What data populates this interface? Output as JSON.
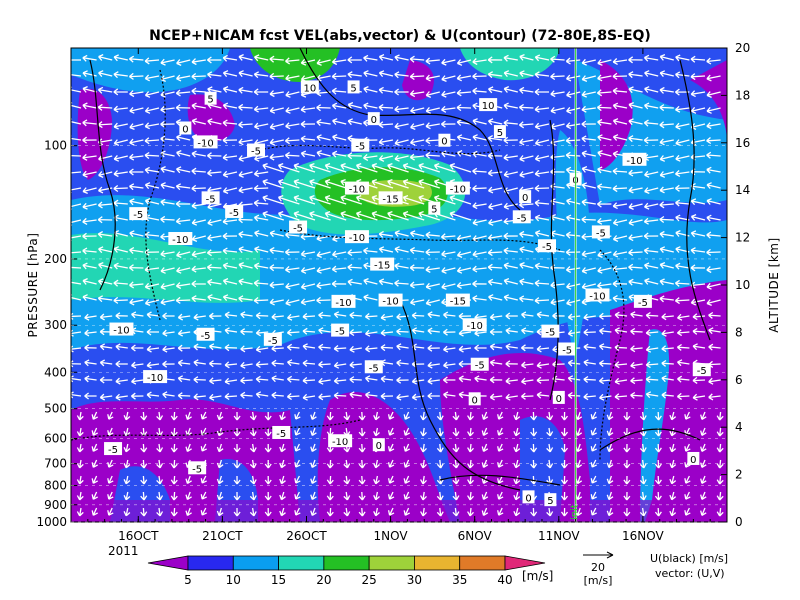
{
  "chart_data": {
    "type": "heatmap",
    "title": "NCEP+NICAM  fcst VEL(abs,vector) & U(contour)  (72-80E,8S-EQ)",
    "ylabel_left": "PRESSURE [hPa]",
    "ylabel_right": "ALTITUDE [km]",
    "x_ticks": [
      "16OCT",
      "21OCT",
      "26OCT",
      "1NOV",
      "6NOV",
      "11NOV",
      "16NOV"
    ],
    "year_label": "2011",
    "x_range": [
      "2011-10-12",
      "2011-11-20"
    ],
    "pressure_ticks": [
      100,
      200,
      300,
      400,
      500,
      600,
      700,
      800,
      900,
      1000
    ],
    "pressure_range": [
      1000,
      55
    ],
    "altitude_ticks": [
      0,
      2,
      4,
      6,
      8,
      10,
      12,
      14,
      16,
      18,
      20
    ],
    "init_label": "init",
    "init_date": "2011-11-11",
    "colorbar": {
      "levels": [
        5,
        10,
        15,
        20,
        25,
        30,
        35,
        40
      ],
      "colors": [
        "#9b00c8",
        "#2828f0",
        "#0a9ef0",
        "#22d6b4",
        "#24c024",
        "#9ed23a",
        "#e8b430",
        "#e07a28",
        "#e02878"
      ],
      "unit": "[m/s]"
    },
    "vector_ref_value": "20",
    "vector_ref_unit": "[m/s]",
    "legend_line1": "U(black) [m/s]",
    "legend_line2": "vector: (U,V)",
    "contour_labels": [
      {
        "day": 8.3,
        "p": 75,
        "text": "5"
      },
      {
        "day": 6.8,
        "p": 90,
        "text": "0"
      },
      {
        "day": 14.2,
        "p": 70,
        "text": "10"
      },
      {
        "day": 16.8,
        "p": 70,
        "text": "5"
      },
      {
        "day": 11.0,
        "p": 103,
        "text": "-5"
      },
      {
        "day": 8.0,
        "p": 98,
        "text": "-10"
      },
      {
        "day": 18.0,
        "p": 85,
        "text": "0"
      },
      {
        "day": 17.2,
        "p": 100,
        "text": "-5"
      },
      {
        "day": 22.2,
        "p": 97,
        "text": "0"
      },
      {
        "day": 24.8,
        "p": 78,
        "text": "10"
      },
      {
        "day": 25.5,
        "p": 92,
        "text": "5"
      },
      {
        "day": 27.0,
        "p": 137,
        "text": "0"
      },
      {
        "day": 30.0,
        "p": 123,
        "text": "0"
      },
      {
        "day": 33.5,
        "p": 109,
        "text": "-10"
      },
      {
        "day": 17.0,
        "p": 130,
        "text": "-10"
      },
      {
        "day": 19.0,
        "p": 138,
        "text": "-15"
      },
      {
        "day": 23.0,
        "p": 130,
        "text": "-10"
      },
      {
        "day": 21.6,
        "p": 147,
        "text": "5"
      },
      {
        "day": 8.3,
        "p": 138,
        "text": "-5"
      },
      {
        "day": 9.7,
        "p": 150,
        "text": "-5"
      },
      {
        "day": 4.0,
        "p": 152,
        "text": "-5"
      },
      {
        "day": 13.5,
        "p": 165,
        "text": "-5"
      },
      {
        "day": 17.0,
        "p": 175,
        "text": "-10"
      },
      {
        "day": 6.5,
        "p": 177,
        "text": "-10"
      },
      {
        "day": 28.3,
        "p": 185,
        "text": "-5"
      },
      {
        "day": 26.8,
        "p": 155,
        "text": "-5"
      },
      {
        "day": 31.5,
        "p": 170,
        "text": "-5"
      },
      {
        "day": 18.5,
        "p": 207,
        "text": "-15"
      },
      {
        "day": 16.2,
        "p": 260,
        "text": "-10"
      },
      {
        "day": 19.0,
        "p": 258,
        "text": "-10"
      },
      {
        "day": 23.0,
        "p": 258,
        "text": "-15"
      },
      {
        "day": 24.0,
        "p": 300,
        "text": "-10"
      },
      {
        "day": 31.3,
        "p": 250,
        "text": "-10"
      },
      {
        "day": 34.0,
        "p": 260,
        "text": "-5"
      },
      {
        "day": 3.0,
        "p": 308,
        "text": "-10"
      },
      {
        "day": 8.0,
        "p": 318,
        "text": "-5"
      },
      {
        "day": 12.0,
        "p": 328,
        "text": "-5"
      },
      {
        "day": 16.0,
        "p": 310,
        "text": "-5"
      },
      {
        "day": 28.5,
        "p": 312,
        "text": "-5"
      },
      {
        "day": 29.5,
        "p": 348,
        "text": "-5"
      },
      {
        "day": 5.0,
        "p": 412,
        "text": "-10"
      },
      {
        "day": 18.0,
        "p": 388,
        "text": "-5"
      },
      {
        "day": 24.3,
        "p": 382,
        "text": "-5"
      },
      {
        "day": 37.5,
        "p": 395,
        "text": "-5"
      },
      {
        "day": 24.0,
        "p": 472,
        "text": "0"
      },
      {
        "day": 29.0,
        "p": 468,
        "text": "0"
      },
      {
        "day": 12.5,
        "p": 580,
        "text": "-5"
      },
      {
        "day": 16.0,
        "p": 610,
        "text": "-10"
      },
      {
        "day": 18.3,
        "p": 625,
        "text": "0"
      },
      {
        "day": 2.5,
        "p": 640,
        "text": "-5"
      },
      {
        "day": 7.5,
        "p": 720,
        "text": "-5"
      },
      {
        "day": 37.0,
        "p": 680,
        "text": "0"
      },
      {
        "day": 27.2,
        "p": 860,
        "text": "0"
      },
      {
        "day": 28.5,
        "p": 875,
        "text": "5"
      }
    ]
  }
}
